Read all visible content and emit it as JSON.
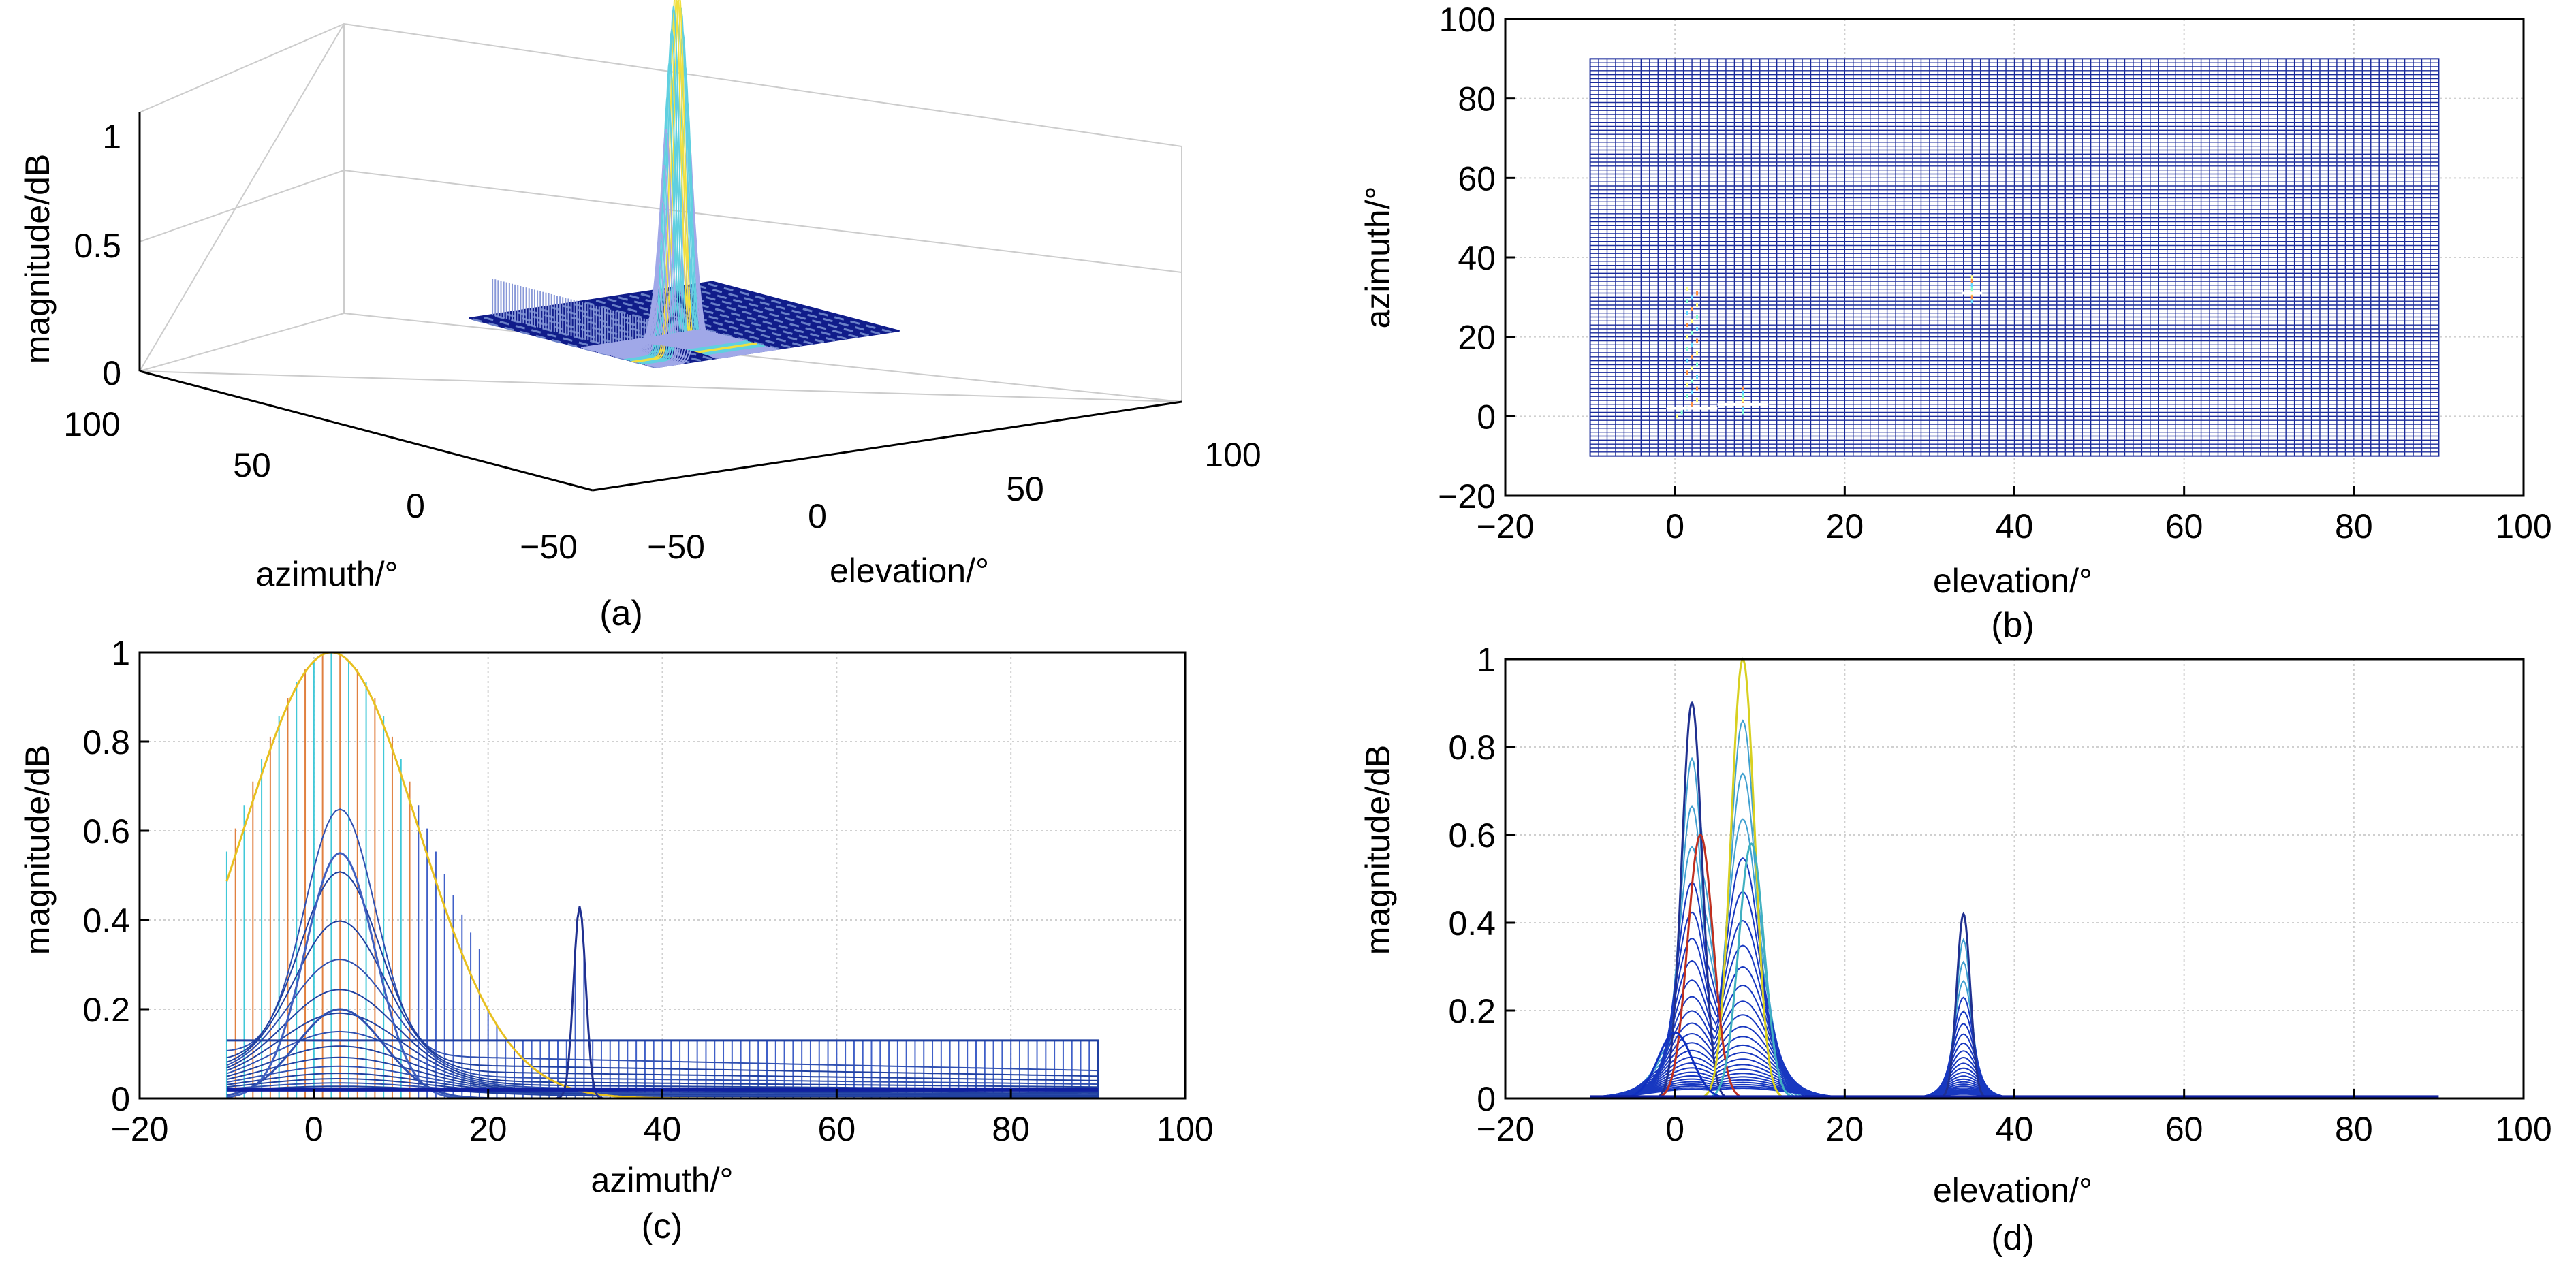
{
  "chart_data": [
    {
      "id": "a",
      "type": "surface3d",
      "caption": "(a)",
      "xlabel": "elevation/°",
      "ylabel": "azimuth/°",
      "zlabel": "magnitude/dB",
      "x_ticks": [
        "0",
        "50",
        "100"
      ],
      "y_ticks": [
        "100",
        "50",
        "0",
        "−50"
      ],
      "z_ticks": [
        "0",
        "0.5",
        "1"
      ],
      "xlim": [
        -50,
        100
      ],
      "ylim": [
        -50,
        100
      ],
      "zlim": [
        0,
        1
      ],
      "grid": true,
      "features": [
        {
          "name": "main-peak",
          "elevation": 8,
          "azimuth": 2,
          "magnitude": 1.0
        },
        {
          "name": "ridge",
          "elevation": 2,
          "azimuth": 60,
          "magnitude": 0.1
        }
      ]
    },
    {
      "id": "b",
      "type": "mesh-topview",
      "caption": "(b)",
      "xlabel": "elevation/°",
      "ylabel": "azimuth/°",
      "x_ticks": [
        "−20",
        "0",
        "20",
        "40",
        "60",
        "80",
        "100"
      ],
      "y_ticks": [
        "−20",
        "0",
        "20",
        "40",
        "60",
        "80",
        "100"
      ],
      "xlim": [
        -20,
        100
      ],
      "ylim": [
        -20,
        100
      ],
      "grid": true,
      "mesh_x_range": [
        -10,
        90
      ],
      "mesh_y_range": [
        -10,
        90
      ],
      "highlights": [
        {
          "name": "source-1",
          "elevation": 2,
          "azimuth": 2
        },
        {
          "name": "source-2",
          "elevation": 8,
          "azimuth": 3
        },
        {
          "name": "source-3",
          "elevation": 35,
          "azimuth": 31
        }
      ]
    },
    {
      "id": "c",
      "type": "line",
      "caption": "(c)",
      "xlabel": "azimuth/°",
      "ylabel": "magnitude/dB",
      "x_ticks": [
        "−20",
        "0",
        "20",
        "40",
        "60",
        "80",
        "100"
      ],
      "y_ticks": [
        "0",
        "0.2",
        "0.4",
        "0.6",
        "0.8",
        "1"
      ],
      "xlim": [
        -20,
        100
      ],
      "ylim": [
        0,
        1
      ],
      "grid": true,
      "series": [
        {
          "name": "main-lobe",
          "peak_x": 2,
          "peak_y": 1.0,
          "width": 10,
          "color": "#e8c020"
        },
        {
          "name": "second-lobe",
          "peak_x": 3,
          "peak_y": 0.55,
          "width": 4,
          "color": "#4060c0"
        },
        {
          "name": "third-lobe",
          "peak_x": 3,
          "peak_y": 0.2,
          "width": 5,
          "color": "#3050b0"
        },
        {
          "name": "side-peak",
          "peak_x": 30.5,
          "peak_y": 0.43,
          "width": 0.7,
          "color": "#203090"
        },
        {
          "name": "floor",
          "start_x": -10,
          "end_x": 90,
          "level": 0.13,
          "color": "#2040a0"
        }
      ]
    },
    {
      "id": "d",
      "type": "line",
      "caption": "(d)",
      "xlabel": "elevation/°",
      "ylabel": "magnitude/dB",
      "x_ticks": [
        "−20",
        "0",
        "20",
        "40",
        "60",
        "80",
        "100"
      ],
      "y_ticks": [
        "0",
        "0.2",
        "0.4",
        "0.6",
        "0.8",
        "1"
      ],
      "xlim": [
        -20,
        100
      ],
      "ylim": [
        0,
        1
      ],
      "grid": true,
      "series": [
        {
          "name": "peak-1",
          "peak_x": 2,
          "peak_y": 0.9,
          "width": 1.2,
          "color": "#203090"
        },
        {
          "name": "peak-2",
          "peak_x": 8,
          "peak_y": 1.0,
          "width": 1.4,
          "color": "#d8d020"
        },
        {
          "name": "peak-3",
          "peak_x": 3,
          "peak_y": 0.6,
          "width": 1.5,
          "color": "#c03020"
        },
        {
          "name": "peak-4",
          "peak_x": 9,
          "peak_y": 0.58,
          "width": 1.5,
          "color": "#40b0c0"
        },
        {
          "name": "peak-5",
          "peak_x": 34,
          "peak_y": 0.42,
          "width": 0.8,
          "color": "#203090"
        },
        {
          "name": "peak-6",
          "peak_x": 0,
          "peak_y": 0.15,
          "width": 2.0,
          "color": "#1030c0"
        }
      ]
    }
  ]
}
